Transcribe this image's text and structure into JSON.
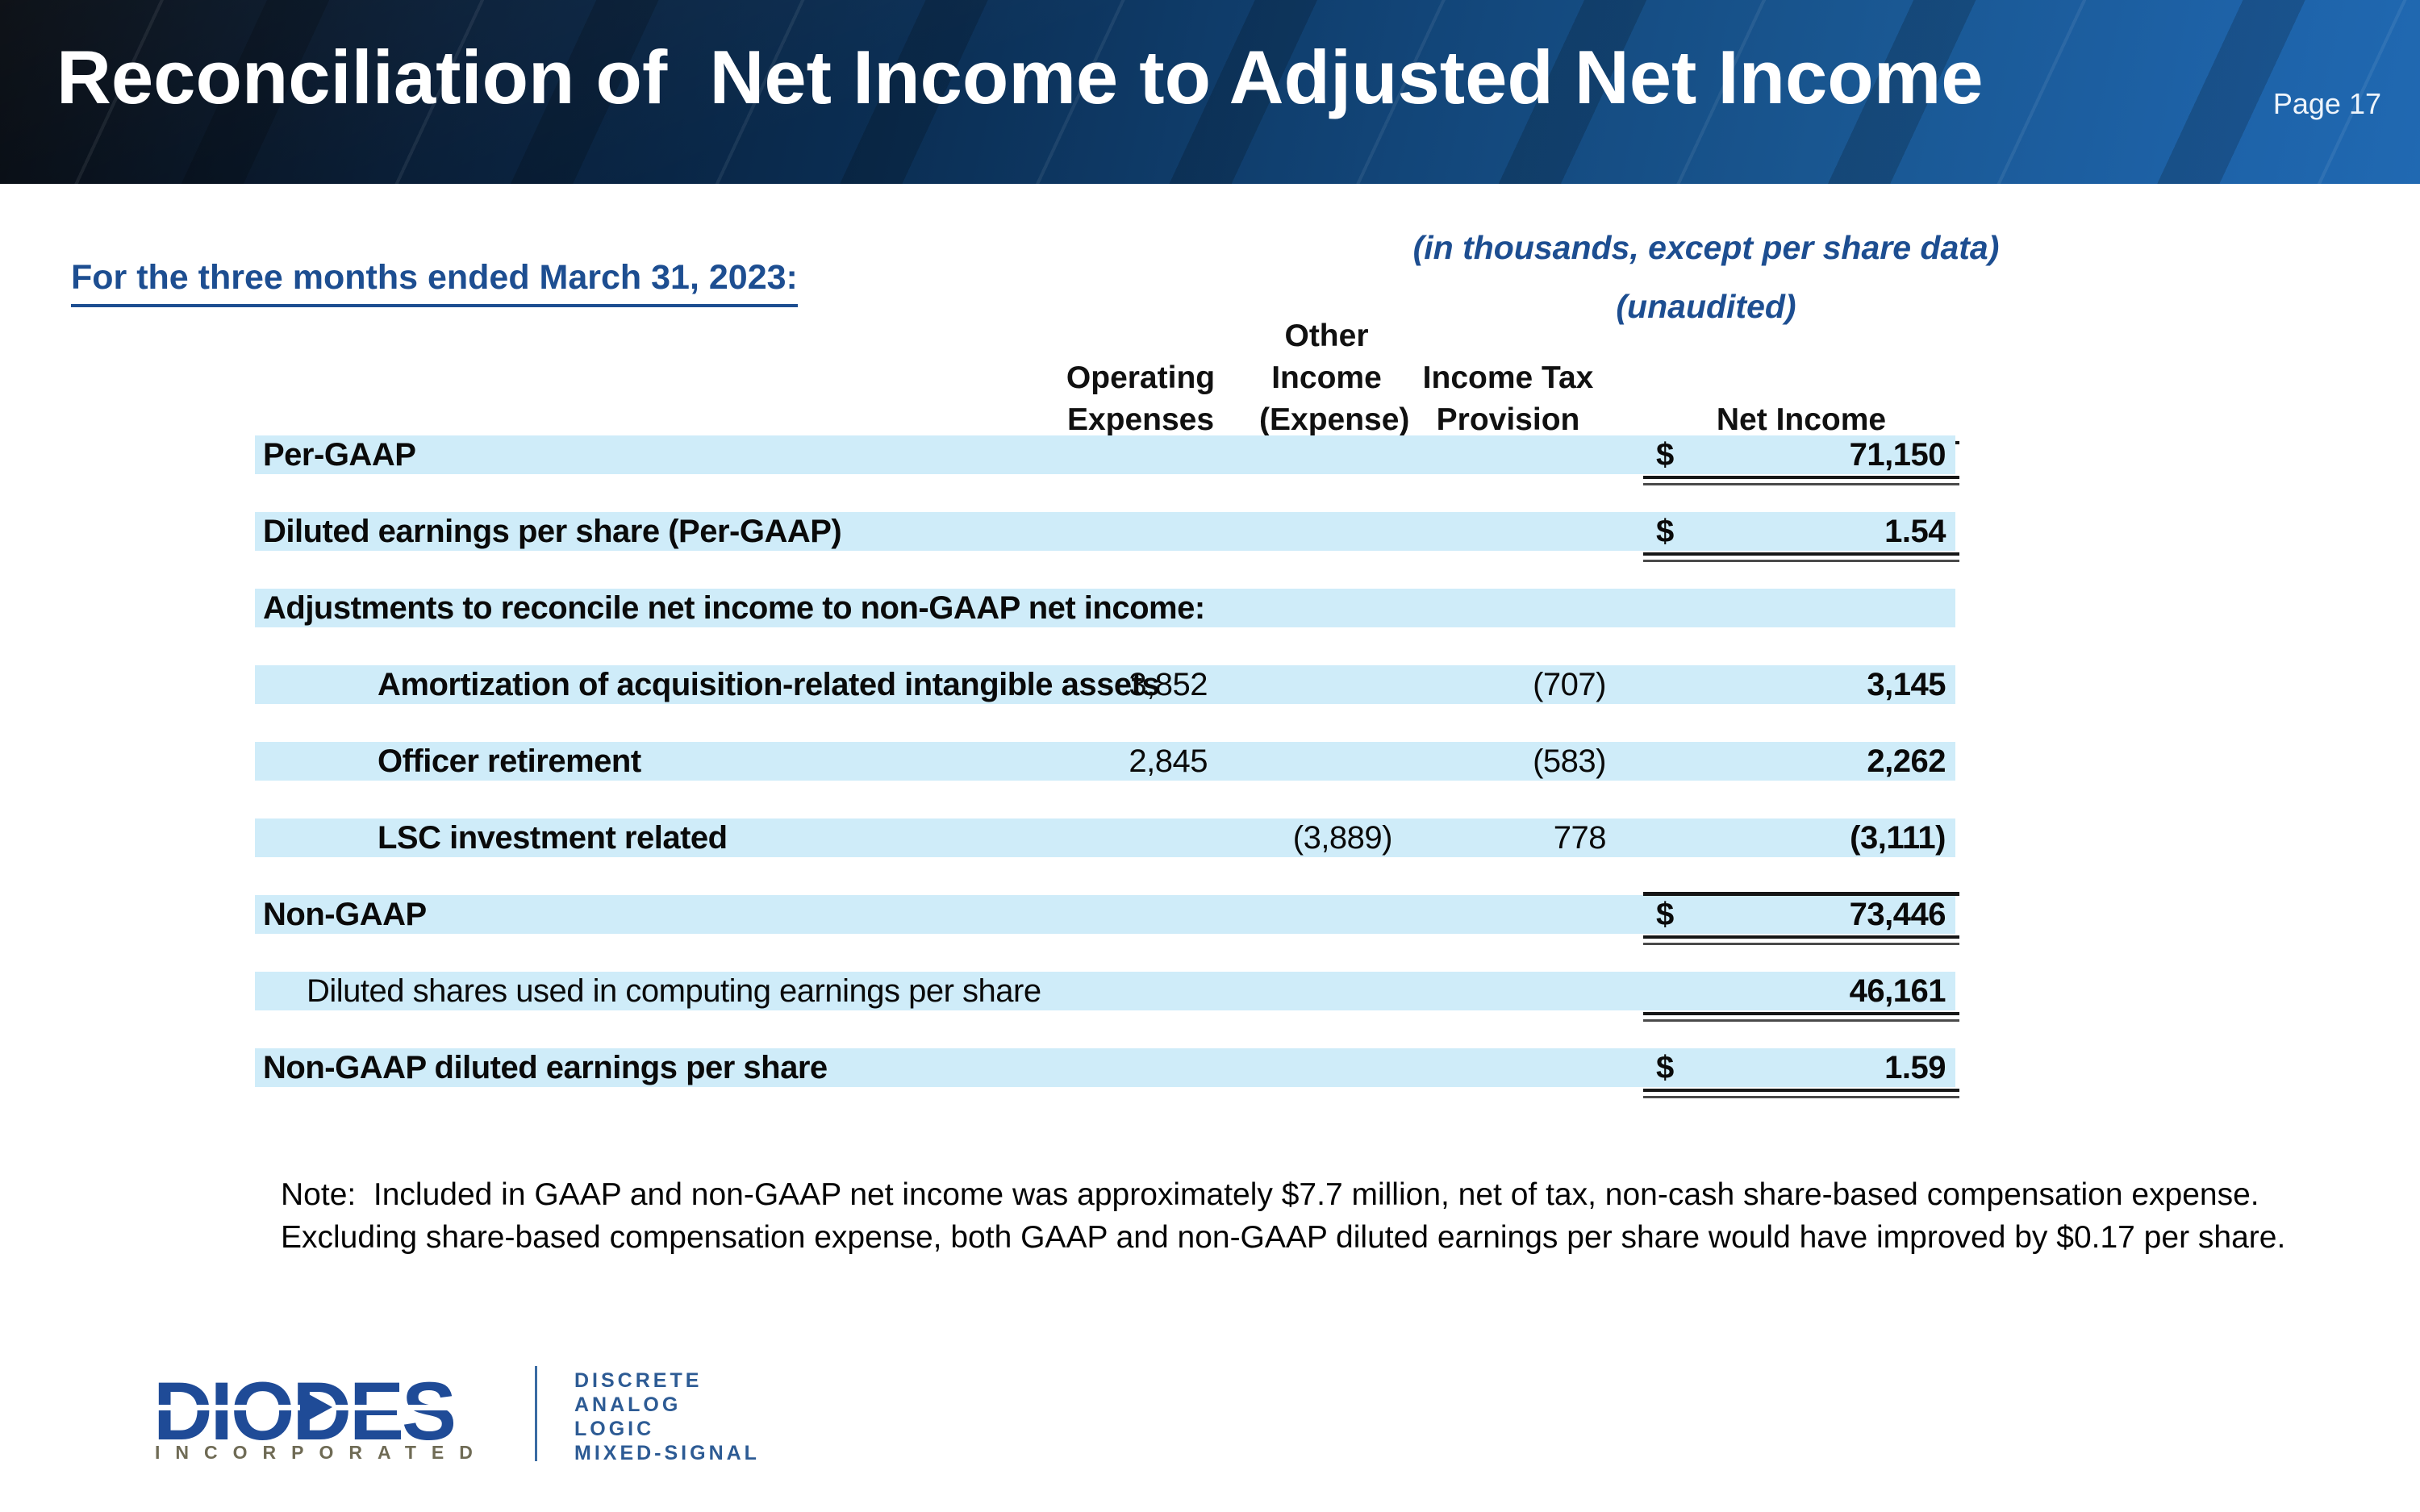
{
  "page": {
    "title": "Reconciliation of  Net Income to Adjusted Net Income",
    "page_label": "Page 17"
  },
  "subheader": {
    "period": "For the three months ended March 31, 2023:",
    "units_line1": "(in thousands, except per share data)",
    "units_line2": "(unaudited)"
  },
  "table": {
    "columns": {
      "opex": {
        "l1": "Operating",
        "l2": "Expenses"
      },
      "other": {
        "l1": "Other",
        "l2": "Income",
        "l3": "(Expense)"
      },
      "tax": {
        "l1": "Income Tax",
        "l2": "Provision"
      },
      "net": {
        "l1": "Net Income"
      }
    },
    "rows": [
      {
        "name": "per-gaap",
        "label": "Per-GAAP",
        "indent": 0,
        "label_bold": true,
        "opex": "",
        "other": "",
        "tax": "",
        "dollar": "$",
        "net": "71,150",
        "underline": "double",
        "topline": false
      },
      {
        "name": "diluted-eps-per-gaap",
        "label": "Diluted earnings per share (Per-GAAP)",
        "indent": 0,
        "label_bold": true,
        "opex": "",
        "other": "",
        "tax": "",
        "dollar": "$",
        "net": "1.54",
        "underline": "double",
        "topline": false
      },
      {
        "name": "adjustments-header",
        "label": "Adjustments to reconcile net income to non-GAAP net income:",
        "indent": 0,
        "label_bold": true,
        "opex": "",
        "other": "",
        "tax": "",
        "dollar": "",
        "net": "",
        "underline": "none",
        "topline": false
      },
      {
        "name": "amortization-intangibles",
        "label": "Amortization of acquisition-related intangible assets",
        "indent": 2,
        "label_bold": true,
        "opex": "3,852",
        "other": "",
        "tax": "(707)",
        "dollar": "",
        "net": "3,145",
        "underline": "none",
        "topline": false
      },
      {
        "name": "officer-retirement",
        "label": "Officer retirement",
        "indent": 2,
        "label_bold": true,
        "opex": "2,845",
        "other": "",
        "tax": "(583)",
        "dollar": "",
        "net": "2,262",
        "underline": "none",
        "topline": false
      },
      {
        "name": "lsc-investment-related",
        "label": "LSC investment related",
        "indent": 2,
        "label_bold": true,
        "opex": "",
        "other": "(3,889)",
        "tax": "778",
        "dollar": "",
        "net": "(3,111)",
        "underline": "none",
        "topline": false
      },
      {
        "name": "non-gaap",
        "label": "Non-GAAP",
        "indent": 0,
        "label_bold": true,
        "opex": "",
        "other": "",
        "tax": "",
        "dollar": "$",
        "net": "73,446",
        "underline": "double",
        "topline": true
      },
      {
        "name": "diluted-shares",
        "label": "Diluted shares used in computing earnings per share",
        "indent": 1,
        "label_bold": false,
        "opex": "",
        "other": "",
        "tax": "",
        "dollar": "",
        "net": "46,161",
        "underline": "double",
        "topline": false
      },
      {
        "name": "non-gaap-diluted-eps",
        "label": "Non-GAAP diluted earnings per share",
        "indent": 0,
        "label_bold": true,
        "opex": "",
        "other": "",
        "tax": "",
        "dollar": "$",
        "net": "1.59",
        "underline": "double",
        "topline": false
      }
    ]
  },
  "note": {
    "line1": "Note:  Included in GAAP and non-GAAP net income was approximately $7.7 million, net of tax, non-cash share-based compensation expense.",
    "line2": "Excluding share-based compensation expense, both GAAP and non-GAAP diluted earnings per share would have improved by $0.17 per share."
  },
  "logo": {
    "brand": "DIODES",
    "sub": "INCORPORATED",
    "tagline1": "DISCRETE",
    "tagline2": "ANALOG",
    "tagline3": "LOGIC",
    "tagline4": "MIXED-SIGNAL"
  },
  "colors": {
    "accent_blue": "#1d4e91",
    "row_blue": "#cfecf9",
    "banner_blue": "#1e63a9",
    "logo_blue": "#1f4b97",
    "logo_gold": "#6f6b55"
  }
}
